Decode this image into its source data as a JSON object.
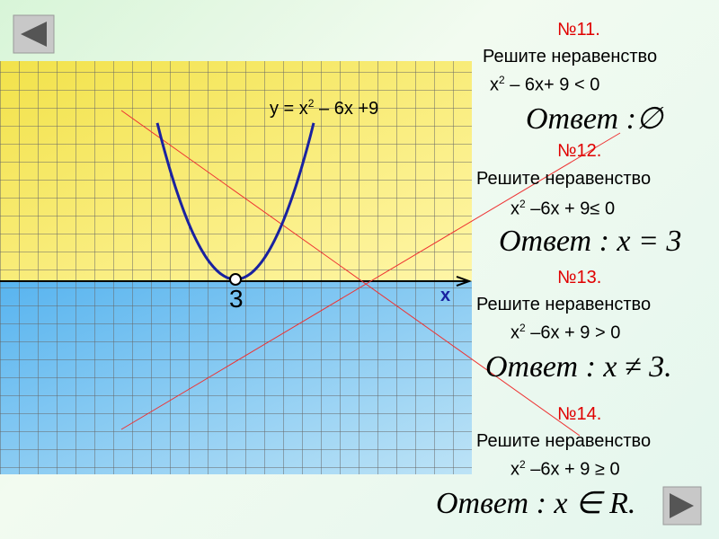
{
  "graph": {
    "formula": [
      "y = x",
      "2",
      " – 6x +9"
    ],
    "axis_label": "x",
    "point_label": "3"
  },
  "problems": [
    {
      "number": "№11.",
      "title": "Решите неравенство",
      "inequality": [
        "x",
        "2",
        " – 6x+ 9 < 0"
      ],
      "answer": "Ответ :∅"
    },
    {
      "number": "№12.",
      "title": "Решите неравенство",
      "inequality": [
        "x",
        "2",
        " –6x + 9≤ 0"
      ],
      "answer": "Ответ : x = 3"
    },
    {
      "number": "№13.",
      "title": "Решите неравенство",
      "inequality": [
        "x",
        "2",
        " –6x + 9 > 0"
      ],
      "answer": "Ответ : x ≠ 3."
    },
    {
      "number": "№14.",
      "title": "Решите неравенство",
      "inequality": [
        "x",
        "2",
        " –6x + 9 ≥ 0"
      ],
      "answer": "Ответ : x ∈ R."
    }
  ]
}
